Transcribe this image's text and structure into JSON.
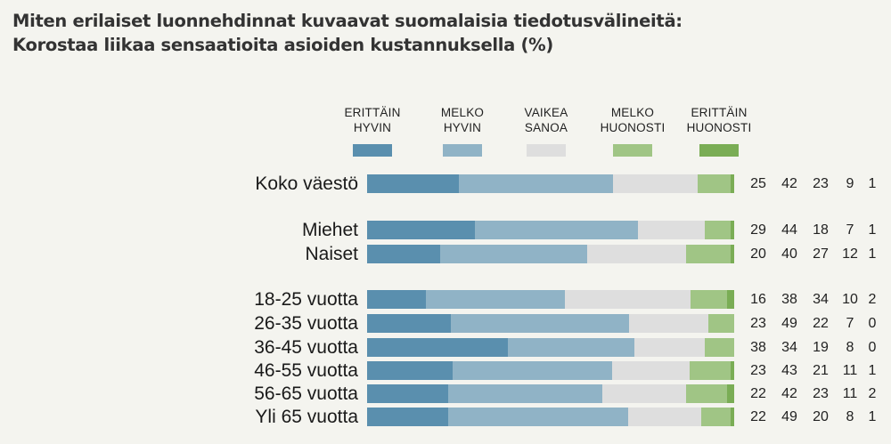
{
  "title": {
    "line1": "Miten erilaiset luonnehdinnat kuvaavat suomalaisia tiedotusvälineitä:",
    "line2": "Korostaa liikaa sensaatioita asioiden kustannuksella (%)"
  },
  "legend": [
    {
      "line1": "ERITTÄIN",
      "line2": "HYVIN",
      "color": "#5a8fae"
    },
    {
      "line1": "MELKO",
      "line2": "HYVIN",
      "color": "#90b3c6"
    },
    {
      "line1": "VAIKEA",
      "line2": "SANOA",
      "color": "#dedede"
    },
    {
      "line1": "MELKO",
      "line2": "HUONOSTI",
      "color": "#a0c585"
    },
    {
      "line1": "ERITTÄIN",
      "line2": "HUONOSTI",
      "color": "#7aad55"
    }
  ],
  "rows": [
    {
      "label": "Koko väestö",
      "values": [
        "25",
        "42",
        "23",
        "9",
        "1"
      ]
    },
    {
      "label": "Miehet",
      "values": [
        "29",
        "44",
        "18",
        "7",
        "1"
      ]
    },
    {
      "label": "Naiset",
      "values": [
        "20",
        "40",
        "27",
        "12",
        "1"
      ]
    },
    {
      "label": "18-25 vuotta",
      "values": [
        "16",
        "38",
        "34",
        "10",
        "2"
      ]
    },
    {
      "label": "26-35 vuotta",
      "values": [
        "23",
        "49",
        "22",
        "7",
        "0"
      ]
    },
    {
      "label": "36-45 vuotta",
      "values": [
        "38",
        "34",
        "19",
        "8",
        "0"
      ]
    },
    {
      "label": "46-55 vuotta",
      "values": [
        "23",
        "43",
        "21",
        "11",
        "1"
      ]
    },
    {
      "label": "56-65 vuotta",
      "values": [
        "22",
        "42",
        "23",
        "11",
        "2"
      ]
    },
    {
      "label": "Yli 65 vuotta",
      "values": [
        "22",
        "49",
        "20",
        "8",
        "1"
      ]
    }
  ],
  "chart_data": {
    "type": "bar",
    "orientation": "horizontal",
    "stacked": true,
    "normalized": true,
    "title": "Miten erilaiset luonnehdinnat kuvaavat suomalaisia tiedotusvälineitä: Korostaa liikaa sensaatioita asioiden kustannuksella (%)",
    "xlabel": "",
    "ylabel": "",
    "xlim": [
      0,
      100
    ],
    "grid": false,
    "legend_position": "top",
    "categories": [
      "Koko väestö",
      "Miehet",
      "Naiset",
      "18-25 vuotta",
      "26-35 vuotta",
      "36-45 vuotta",
      "46-55 vuotta",
      "56-65 vuotta",
      "Yli 65 vuotta"
    ],
    "series": [
      {
        "name": "ERITTÄIN HYVIN",
        "color": "#5a8fae",
        "values": [
          25,
          29,
          20,
          16,
          23,
          38,
          23,
          22,
          22
        ]
      },
      {
        "name": "MELKO HYVIN",
        "color": "#90b3c6",
        "values": [
          42,
          44,
          40,
          38,
          49,
          34,
          43,
          42,
          49
        ]
      },
      {
        "name": "VAIKEA SANOA",
        "color": "#dedede",
        "values": [
          23,
          18,
          27,
          34,
          22,
          19,
          21,
          23,
          20
        ]
      },
      {
        "name": "MELKO HUONOSTI",
        "color": "#a0c585",
        "values": [
          9,
          7,
          12,
          10,
          7,
          8,
          11,
          11,
          8
        ]
      },
      {
        "name": "ERITTÄIN HUONOSTI",
        "color": "#7aad55",
        "values": [
          1,
          1,
          1,
          2,
          0,
          0,
          1,
          2,
          1
        ]
      }
    ]
  }
}
